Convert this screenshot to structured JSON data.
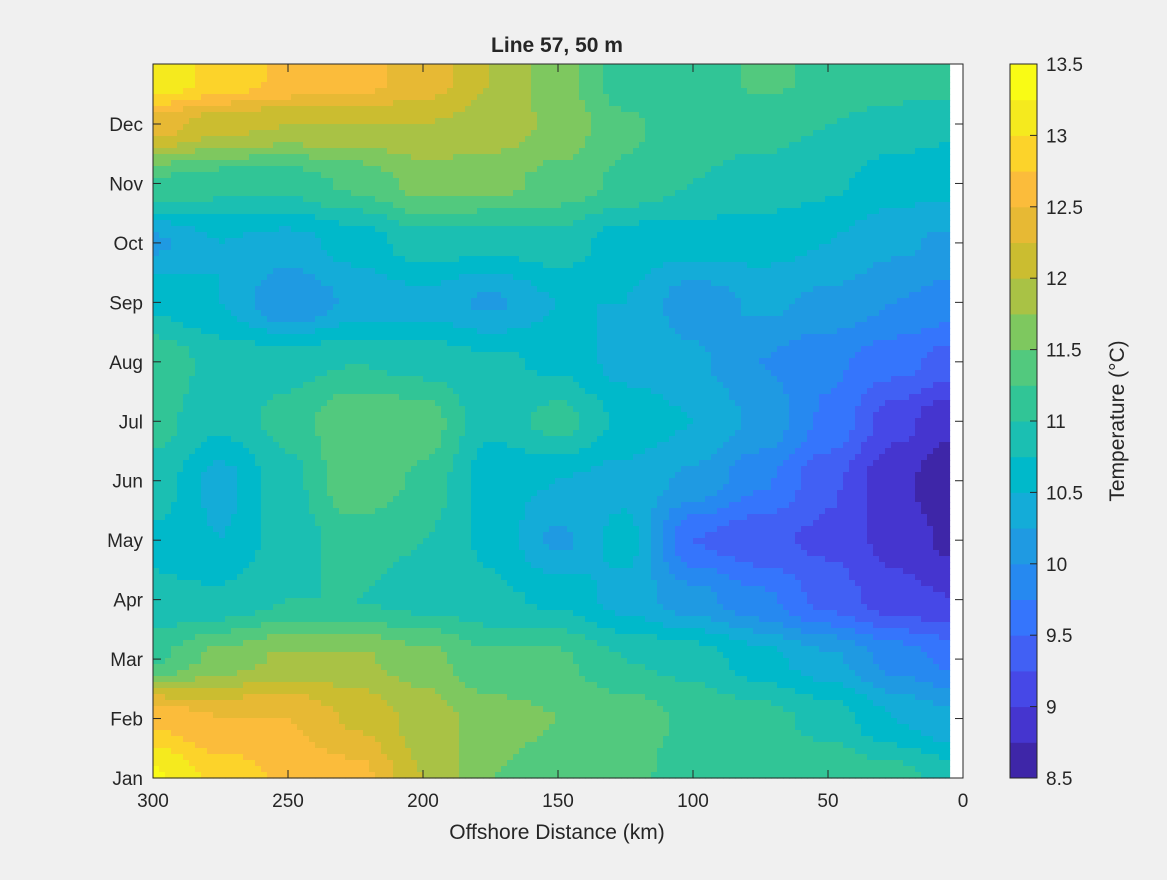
{
  "window": {
    "background": "#f0f0f0"
  },
  "chart_data": {
    "type": "heatmap",
    "subtype": "filled-contour",
    "title": "Line 57, 50 m",
    "xlabel": "Offshore Distance (km)",
    "ylabel": "",
    "x_reversed": true,
    "xlim": [
      0,
      300
    ],
    "x_ticks": [
      300,
      250,
      200,
      150,
      100,
      50,
      0
    ],
    "y_ticks": [
      "Jan",
      "Feb",
      "Mar",
      "Apr",
      "May",
      "Jun",
      "Jul",
      "Aug",
      "Sep",
      "Oct",
      "Nov",
      "Dec"
    ],
    "grid": false,
    "colorbar": {
      "label": "Temperature (°C)",
      "range": [
        8.5,
        13.5
      ],
      "step": 0.25,
      "tick_labels": [
        "13.5",
        "13",
        "12.5",
        "12",
        "11.5",
        "11",
        "10.5",
        "10",
        "9.5",
        "9",
        "8.5"
      ],
      "colors": [
        "#3e26a8",
        "#4535cf",
        "#4648e7",
        "#4160f4",
        "#3575fc",
        "#2689f0",
        "#1f9ae2",
        "#14acd8",
        "#00b9ca",
        "#1bbfb2",
        "#31c596",
        "#52c97e",
        "#7ec85f",
        "#a9c245",
        "#cbbd30",
        "#e7b934",
        "#fbbc3b",
        "#fcd32a",
        "#f5ea1e",
        "#f9fb15"
      ]
    },
    "grid_x_km": [
      300,
      275,
      250,
      225,
      200,
      175,
      150,
      125,
      100,
      75,
      50,
      25,
      5
    ],
    "grid_y_month": [
      1,
      2,
      3,
      4,
      5,
      6,
      7,
      8,
      9,
      10,
      11,
      12,
      12.7
    ],
    "temperature": [
      [
        13.3,
        12.9,
        12.7,
        12.6,
        12.0,
        11.5,
        11.4,
        11.4,
        11.0,
        11.2,
        11.2,
        11.1,
        10.9
      ],
      [
        12.7,
        12.5,
        12.5,
        12.2,
        11.9,
        11.6,
        11.5,
        11.4,
        11.2,
        11.1,
        10.9,
        10.5,
        10.3
      ],
      [
        11.2,
        11.6,
        11.8,
        11.8,
        11.6,
        11.3,
        11.3,
        11.0,
        10.9,
        10.6,
        10.3,
        9.9,
        9.7
      ],
      [
        10.8,
        10.8,
        11.0,
        11.0,
        10.9,
        10.8,
        10.7,
        10.4,
        10.1,
        9.8,
        9.4,
        9.1,
        9.0
      ],
      [
        10.7,
        10.5,
        10.9,
        11.1,
        11.0,
        10.7,
        10.2,
        10.6,
        9.5,
        9.3,
        9.2,
        8.9,
        8.7
      ],
      [
        10.9,
        10.4,
        10.9,
        11.5,
        11.2,
        10.6,
        10.5,
        10.4,
        10.2,
        9.8,
        9.3,
        8.8,
        8.6
      ],
      [
        11.1,
        10.8,
        11.1,
        11.5,
        11.4,
        10.8,
        11.1,
        10.7,
        10.5,
        10.2,
        9.7,
        9.1,
        8.8
      ],
      [
        11.2,
        10.9,
        10.9,
        11.0,
        10.9,
        10.8,
        10.7,
        10.4,
        10.3,
        10.0,
        9.8,
        9.6,
        9.4
      ],
      [
        10.7,
        10.5,
        10.0,
        10.3,
        10.4,
        10.2,
        10.5,
        10.5,
        10.1,
        10.3,
        10.2,
        10.0,
        9.9
      ],
      [
        10.2,
        10.5,
        10.4,
        10.6,
        10.9,
        10.8,
        10.9,
        10.6,
        10.6,
        10.6,
        10.5,
        10.3,
        10.2
      ],
      [
        11.2,
        11.1,
        11.1,
        11.3,
        11.6,
        11.6,
        11.4,
        11.2,
        11.0,
        10.9,
        10.8,
        10.6,
        10.6
      ],
      [
        12.4,
        12.1,
        12.0,
        12.0,
        12.0,
        11.9,
        11.7,
        11.3,
        11.1,
        11.1,
        11.0,
        10.9,
        10.8
      ],
      [
        13.2,
        12.9,
        12.7,
        12.6,
        12.4,
        12.0,
        11.6,
        11.1,
        11.0,
        11.3,
        11.2,
        11.1,
        11.1
      ]
    ]
  }
}
